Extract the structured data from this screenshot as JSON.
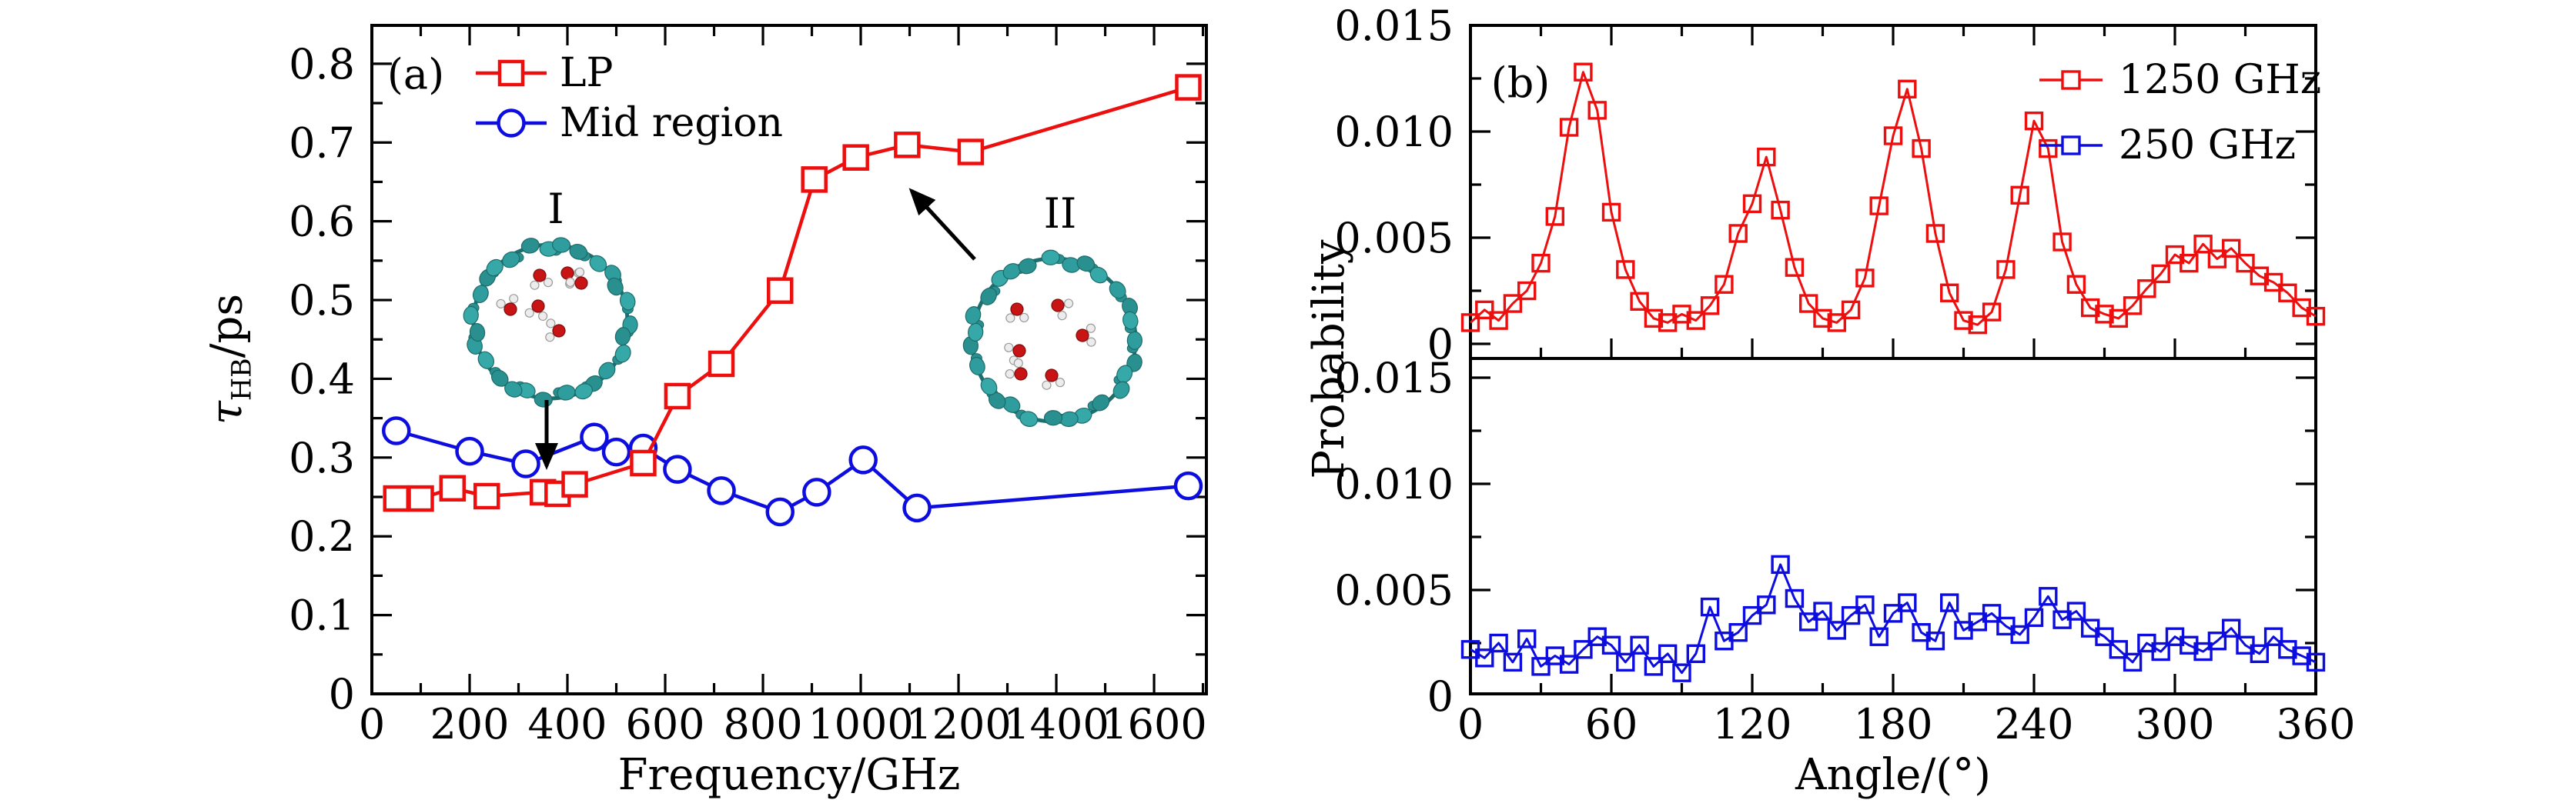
{
  "figure": {
    "background": "#ffffff",
    "text_color": "#000000",
    "accent_red": "#ed0e0e",
    "accent_blue": "#0d0de0"
  },
  "inset_colors": {
    "nanotube_atom": "#2f9d9d",
    "oxygen_atom": "#c81414",
    "hydrogen_atom": "#ececec"
  },
  "chart_data": [
    {
      "id": "panel-a",
      "type": "line",
      "panel_label": "(a)",
      "xlabel": "Frequency/GHz",
      "ylabel_symbol": "τ",
      "ylabel_subscript": "HB",
      "ylabel_unit": "/ps",
      "xlim": [
        0,
        1707
      ],
      "ylim": [
        0,
        0.85
      ],
      "grid": false,
      "legend_position": "top-left-inside",
      "x_major_ticks": [
        0,
        200,
        400,
        600,
        800,
        1000,
        1200,
        1400,
        1600
      ],
      "x_tick_labels": [
        "0",
        "200",
        "400",
        "600",
        "800",
        "1000",
        "1200",
        "1400",
        "1600"
      ],
      "x_minor_ticks": [
        100,
        300,
        500,
        700,
        900,
        1100,
        1300,
        1500,
        1700
      ],
      "y_major_ticks": [
        0,
        0.1,
        0.2,
        0.3,
        0.4,
        0.5,
        0.6,
        0.7,
        0.8
      ],
      "y_tick_labels": [
        "0",
        "0.1",
        "0.2",
        "0.3",
        "0.4",
        "0.5",
        "0.6",
        "0.7",
        "0.8"
      ],
      "y_minor_ticks": [
        0.05,
        0.15,
        0.25,
        0.35,
        0.45,
        0.55,
        0.65,
        0.75
      ],
      "legend": [
        {
          "label": "LP",
          "color": "#ed0e0e",
          "marker": "square"
        },
        {
          "label": "Mid region",
          "color": "#0d0de0",
          "marker": "circle"
        }
      ],
      "series": [
        {
          "name": "LP",
          "color": "#ed0e0e",
          "marker": "square",
          "x": [
            50,
            100,
            165,
            235,
            350,
            380,
            415,
            555,
            625,
            715,
            835,
            905,
            990,
            1095,
            1225,
            1670
          ],
          "y": [
            0.248,
            0.248,
            0.261,
            0.251,
            0.256,
            0.254,
            0.266,
            0.293,
            0.378,
            0.419,
            0.512,
            0.653,
            0.681,
            0.697,
            0.688,
            0.77
          ]
        },
        {
          "name": "Mid region",
          "color": "#0d0de0",
          "marker": "circle",
          "x": [
            50,
            200,
            315,
            455,
            500,
            555,
            625,
            715,
            835,
            910,
            1005,
            1115,
            1670
          ],
          "y": [
            0.334,
            0.308,
            0.292,
            0.326,
            0.307,
            0.312,
            0.285,
            0.258,
            0.231,
            0.256,
            0.297,
            0.236,
            0.264
          ]
        }
      ],
      "insets": [
        {
          "label": "I",
          "description": "nanotube ring cross-section with water molecules"
        },
        {
          "label": "II",
          "description": "nanotube ring cross-section with water molecules"
        }
      ]
    },
    {
      "id": "panel-b-top",
      "type": "line",
      "panel_label": "(b)",
      "ylabel": "Probability",
      "xlim": [
        0,
        360
      ],
      "ylim": [
        0,
        0.015
      ],
      "grid": false,
      "legend_position": "top-right-inside",
      "y_major_ticks": [
        0,
        0.005,
        0.01,
        0.015
      ],
      "y_tick_labels": [
        "0",
        "0.005",
        "0.010",
        "0.015"
      ],
      "y_minor_ticks": [
        0.0025,
        0.0075,
        0.0125
      ],
      "series": [
        {
          "name": "1250 GHz",
          "color": "#ed0e0e",
          "marker": "square",
          "x": [
            0,
            6,
            12,
            18,
            24,
            30,
            36,
            42,
            48,
            54,
            60,
            66,
            72,
            78,
            84,
            90,
            96,
            102,
            108,
            114,
            120,
            126,
            132,
            138,
            144,
            150,
            156,
            162,
            168,
            174,
            180,
            186,
            192,
            198,
            204,
            210,
            216,
            222,
            228,
            234,
            240,
            246,
            252,
            258,
            264,
            270,
            276,
            282,
            288,
            294,
            300,
            306,
            312,
            318,
            324,
            330,
            336,
            342,
            348,
            354,
            360
          ],
          "y": [
            0.001,
            0.0016,
            0.0011,
            0.0019,
            0.0025,
            0.0038,
            0.006,
            0.0102,
            0.0128,
            0.011,
            0.0062,
            0.0035,
            0.002,
            0.0012,
            0.001,
            0.0014,
            0.0011,
            0.0018,
            0.0028,
            0.0052,
            0.0066,
            0.0088,
            0.0063,
            0.0036,
            0.0019,
            0.0012,
            0.001,
            0.0016,
            0.0031,
            0.0065,
            0.0098,
            0.012,
            0.0092,
            0.0052,
            0.0024,
            0.0011,
            0.0009,
            0.0015,
            0.0035,
            0.007,
            0.0105,
            0.0092,
            0.0048,
            0.0028,
            0.0017,
            0.0014,
            0.0012,
            0.0018,
            0.0026,
            0.0033,
            0.0042,
            0.0038,
            0.0047,
            0.004,
            0.0045,
            0.0038,
            0.0032,
            0.0029,
            0.0024,
            0.0017,
            0.0013
          ]
        }
      ]
    },
    {
      "id": "panel-b-bottom",
      "type": "line",
      "xlabel": "Angle/(°)",
      "xlim": [
        0,
        360
      ],
      "ylim": [
        0,
        0.015
      ],
      "grid": false,
      "x_major_ticks": [
        0,
        60,
        120,
        180,
        240,
        300,
        360
      ],
      "x_tick_labels": [
        "0",
        "60",
        "120",
        "180",
        "240",
        "300",
        "360"
      ],
      "x_minor_ticks": [
        30,
        90,
        150,
        210,
        270,
        330
      ],
      "y_major_ticks": [
        0,
        0.005,
        0.01,
        0.015
      ],
      "y_tick_labels": [
        "0",
        "0.005",
        "0.010",
        "0.015"
      ],
      "y_minor_ticks": [
        0.0025,
        0.0075,
        0.0125
      ],
      "series": [
        {
          "name": "250 GHz",
          "color": "#0d0de0",
          "marker": "square",
          "x": [
            0,
            6,
            12,
            18,
            24,
            30,
            36,
            42,
            48,
            54,
            60,
            66,
            72,
            78,
            84,
            90,
            96,
            102,
            108,
            114,
            120,
            126,
            132,
            138,
            144,
            150,
            156,
            162,
            168,
            174,
            180,
            186,
            192,
            198,
            204,
            210,
            216,
            222,
            228,
            234,
            240,
            246,
            252,
            258,
            264,
            270,
            276,
            282,
            288,
            294,
            300,
            306,
            312,
            318,
            324,
            330,
            336,
            342,
            348,
            354,
            360
          ],
          "y": [
            0.0022,
            0.0018,
            0.0025,
            0.0016,
            0.0027,
            0.0014,
            0.0019,
            0.0015,
            0.0022,
            0.0028,
            0.0024,
            0.0016,
            0.0024,
            0.0014,
            0.002,
            0.0011,
            0.002,
            0.0042,
            0.0026,
            0.003,
            0.0038,
            0.0043,
            0.0062,
            0.0046,
            0.0035,
            0.004,
            0.0031,
            0.0038,
            0.0043,
            0.0028,
            0.0039,
            0.0044,
            0.003,
            0.0026,
            0.0044,
            0.0031,
            0.0035,
            0.0039,
            0.0033,
            0.0029,
            0.0037,
            0.0047,
            0.0036,
            0.004,
            0.0032,
            0.0028,
            0.0022,
            0.0016,
            0.0025,
            0.0021,
            0.0028,
            0.0024,
            0.0021,
            0.0026,
            0.0032,
            0.0024,
            0.002,
            0.0028,
            0.0022,
            0.0019,
            0.0016
          ]
        }
      ]
    }
  ]
}
